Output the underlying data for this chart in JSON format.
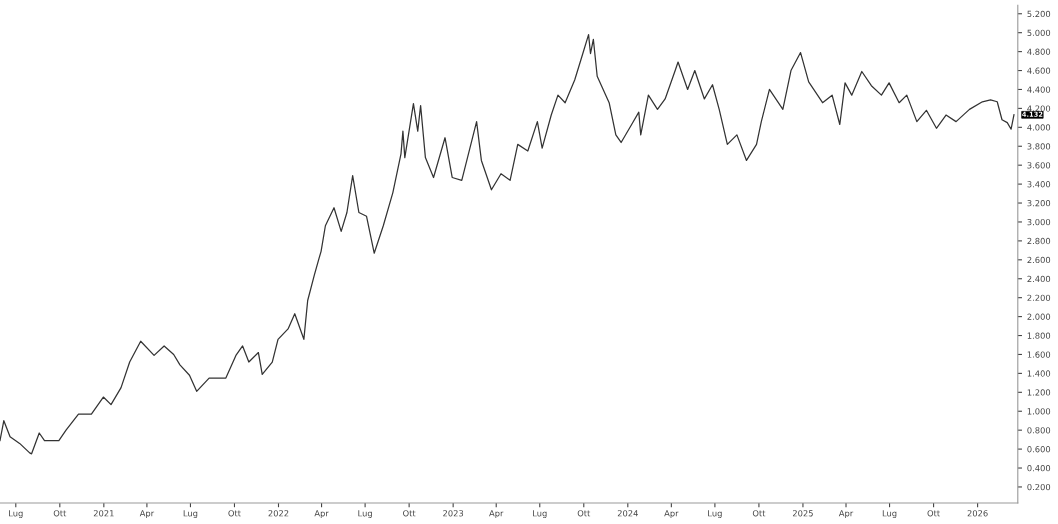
{
  "chart_data": {
    "type": "line",
    "x": [
      "2020-05-29",
      "2020-06-06",
      "2020-06-19",
      "2020-07-09",
      "2020-07-30",
      "2020-08-03",
      "2020-08-19",
      "2020-08-30",
      "2020-09-29",
      "2020-10-14",
      "2020-11-09",
      "2020-12-06",
      "2020-12-31",
      "2021-01-16",
      "2021-02-06",
      "2021-02-24",
      "2021-03-19",
      "2021-04-16",
      "2021-05-07",
      "2021-05-27",
      "2021-06-09",
      "2021-06-29",
      "2021-07-14",
      "2021-08-09",
      "2021-09-13",
      "2021-10-04",
      "2021-10-18",
      "2021-10-31",
      "2021-11-20",
      "2021-11-28",
      "2021-12-19",
      "2021-12-31",
      "2022-01-21",
      "2022-02-04",
      "2022-02-23",
      "2022-03-03",
      "2022-03-17",
      "2022-03-27",
      "2022-03-31",
      "2022-04-09",
      "2022-04-27",
      "2022-05-12",
      "2022-05-24",
      "2022-06-05",
      "2022-06-18",
      "2022-07-04",
      "2022-07-20",
      "2022-08-08",
      "2022-08-28",
      "2022-09-14",
      "2022-09-18",
      "2022-09-22",
      "2022-10-10",
      "2022-10-19",
      "2022-10-25",
      "2022-11-04",
      "2022-11-21",
      "2022-12-15",
      "2022-12-30",
      "2023-01-19",
      "2023-02-19",
      "2023-03-01",
      "2023-03-22",
      "2023-04-11",
      "2023-04-30",
      "2023-05-16",
      "2023-06-06",
      "2023-06-26",
      "2023-07-06",
      "2023-07-25",
      "2023-08-08",
      "2023-08-23",
      "2023-09-12",
      "2023-09-29",
      "2023-10-11",
      "2023-10-15",
      "2023-10-21",
      "2023-10-29",
      "2023-11-23",
      "2023-12-07",
      "2023-12-18",
      "2024-01-09",
      "2024-01-24",
      "2024-01-28",
      "2024-02-13",
      "2024-03-03",
      "2024-03-19",
      "2024-04-09",
      "2024-04-15",
      "2024-05-05",
      "2024-05-20",
      "2024-06-09",
      "2024-06-26",
      "2024-07-10",
      "2024-07-27",
      "2024-08-16",
      "2024-09-05",
      "2024-09-26",
      "2024-10-06",
      "2024-10-23",
      "2024-11-20",
      "2024-12-07",
      "2024-12-27",
      "2025-01-13",
      "2025-02-11",
      "2025-03-03",
      "2025-03-19",
      "2025-03-30",
      "2025-04-13",
      "2025-05-04",
      "2025-05-24",
      "2025-06-14",
      "2025-06-30",
      "2025-07-21",
      "2025-08-06",
      "2025-08-27",
      "2025-09-16",
      "2025-10-07",
      "2025-10-27",
      "2025-11-17",
      "2025-12-15",
      "2026-01-11",
      "2026-01-28",
      "2026-02-11",
      "2026-02-21",
      "2026-03-04",
      "2026-03-12",
      "2026-03-18"
    ],
    "series": [
      {
        "color": "#333333",
        "values": [
          0.69,
          0.9,
          0.73,
          0.66,
          0.56,
          0.55,
          0.77,
          0.69,
          0.69,
          0.8,
          0.97,
          0.97,
          1.15,
          1.07,
          1.25,
          1.52,
          1.74,
          1.59,
          1.69,
          1.6,
          1.49,
          1.38,
          1.21,
          1.35,
          1.35,
          1.59,
          1.69,
          1.52,
          1.62,
          1.39,
          1.52,
          1.76,
          1.87,
          2.03,
          1.76,
          2.17,
          2.44,
          2.62,
          2.69,
          2.96,
          3.15,
          2.9,
          3.1,
          3.49,
          3.1,
          3.06,
          2.67,
          2.96,
          3.31,
          3.72,
          3.96,
          3.68,
          4.25,
          3.96,
          4.23,
          3.68,
          3.47,
          3.89,
          3.47,
          3.44,
          4.06,
          3.65,
          3.34,
          3.51,
          3.44,
          3.82,
          3.75,
          4.06,
          3.78,
          4.13,
          4.34,
          4.26,
          4.5,
          4.78,
          4.98,
          4.78,
          4.93,
          4.54,
          4.26,
          3.92,
          3.84,
          4.03,
          4.16,
          3.92,
          4.34,
          4.19,
          4.3,
          4.6,
          4.69,
          4.4,
          4.6,
          4.3,
          4.45,
          4.19,
          3.82,
          3.92,
          3.65,
          3.82,
          4.06,
          4.4,
          4.19,
          4.6,
          4.79,
          4.48,
          4.26,
          4.34,
          4.03,
          4.47,
          4.34,
          4.59,
          4.44,
          4.34,
          4.47,
          4.26,
          4.34,
          4.06,
          4.18,
          3.99,
          4.13,
          4.06,
          4.19,
          4.27,
          4.29,
          4.27,
          4.08,
          4.05,
          3.98,
          4.132
        ]
      }
    ],
    "xlim": [
      "2020-05-29",
      "2026-03-26"
    ],
    "xticks": [
      {
        "value": "2020-07-01",
        "label": "Lug"
      },
      {
        "value": "2020-10-01",
        "label": "Ott"
      },
      {
        "value": "2021-01-01",
        "label": "2021"
      },
      {
        "value": "2021-04-01",
        "label": "Apr"
      },
      {
        "value": "2021-07-01",
        "label": "Lug"
      },
      {
        "value": "2021-10-01",
        "label": "Ott"
      },
      {
        "value": "2022-01-01",
        "label": "2022"
      },
      {
        "value": "2022-04-01",
        "label": "Apr"
      },
      {
        "value": "2022-07-01",
        "label": "Lug"
      },
      {
        "value": "2022-10-01",
        "label": "Ott"
      },
      {
        "value": "2023-01-01",
        "label": "2023"
      },
      {
        "value": "2023-04-01",
        "label": "Apr"
      },
      {
        "value": "2023-07-01",
        "label": "Lug"
      },
      {
        "value": "2023-10-01",
        "label": "Ott"
      },
      {
        "value": "2024-01-01",
        "label": "2024"
      },
      {
        "value": "2024-04-01",
        "label": "Apr"
      },
      {
        "value": "2024-07-01",
        "label": "Lug"
      },
      {
        "value": "2024-10-01",
        "label": "Ott"
      },
      {
        "value": "2025-01-01",
        "label": "2025"
      },
      {
        "value": "2025-04-01",
        "label": "Apr"
      },
      {
        "value": "2025-07-01",
        "label": "Lug"
      },
      {
        "value": "2025-10-01",
        "label": "Ott"
      },
      {
        "value": "2026-01-01",
        "label": "2026"
      }
    ],
    "ylim": [
      0.03,
      5.29
    ],
    "yticks": [
      {
        "value": 0.2,
        "label": "0.200"
      },
      {
        "value": 0.4,
        "label": "0.400"
      },
      {
        "value": 0.6,
        "label": "0.600"
      },
      {
        "value": 0.8,
        "label": "0.800"
      },
      {
        "value": 1.0,
        "label": "1.000"
      },
      {
        "value": 1.2,
        "label": "1.200"
      },
      {
        "value": 1.4,
        "label": "1.400"
      },
      {
        "value": 1.6,
        "label": "1.600"
      },
      {
        "value": 1.8,
        "label": "1.800"
      },
      {
        "value": 2.0,
        "label": "2.000"
      },
      {
        "value": 2.2,
        "label": "2.200"
      },
      {
        "value": 2.4,
        "label": "2.400"
      },
      {
        "value": 2.6,
        "label": "2.600"
      },
      {
        "value": 2.8,
        "label": "2.800"
      },
      {
        "value": 3.0,
        "label": "3.000"
      },
      {
        "value": 3.2,
        "label": "3.200"
      },
      {
        "value": 3.4,
        "label": "3.400"
      },
      {
        "value": 3.6,
        "label": "3.600"
      },
      {
        "value": 3.8,
        "label": "3.800"
      },
      {
        "value": 4.0,
        "label": "4.000"
      },
      {
        "value": 4.2,
        "label": "4.200"
      },
      {
        "value": 4.4,
        "label": "4.400"
      },
      {
        "value": 4.6,
        "label": "4.600"
      },
      {
        "value": 4.8,
        "label": "4.800"
      },
      {
        "value": 5.0,
        "label": "5.000"
      },
      {
        "value": 5.2,
        "label": "5.200"
      }
    ],
    "annotations": [
      {
        "text": "4.132",
        "x": "2026-03-18",
        "y": 4.132
      }
    ],
    "grid": false,
    "legend": false,
    "marker": "none",
    "line_style": "solid"
  }
}
